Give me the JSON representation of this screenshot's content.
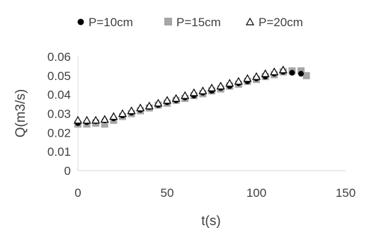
{
  "chart_data": {
    "type": "scatter",
    "xlabel": "t(s)",
    "ylabel": "Q(m3/s)",
    "xlim": [
      0,
      150
    ],
    "ylim": [
      0,
      0.06
    ],
    "x_ticks": [
      "0",
      "50",
      "100",
      "150"
    ],
    "y_ticks": [
      "0",
      "0.01",
      "0.02",
      "0.03",
      "0.04",
      "0.05",
      "0.06"
    ],
    "grid": false,
    "legend_position": "top",
    "series": [
      {
        "name": "P=10cm",
        "marker": "circle",
        "color": "#000000",
        "x": [
          0,
          5,
          10,
          15,
          20,
          25,
          30,
          35,
          40,
          45,
          50,
          55,
          60,
          65,
          70,
          75,
          80,
          85,
          90,
          95,
          100,
          105,
          110,
          115,
          120,
          125
        ],
        "y": [
          0.025,
          0.0255,
          0.026,
          0.0265,
          0.0275,
          0.029,
          0.0305,
          0.032,
          0.0335,
          0.0345,
          0.036,
          0.037,
          0.0385,
          0.0395,
          0.041,
          0.042,
          0.0435,
          0.0445,
          0.046,
          0.047,
          0.0485,
          0.0495,
          0.051,
          0.052,
          0.0515,
          0.051
        ]
      },
      {
        "name": "P=15cm",
        "marker": "square",
        "color": "#a6a6a6",
        "x": [
          0,
          5,
          10,
          15,
          20,
          25,
          30,
          35,
          40,
          45,
          50,
          55,
          60,
          65,
          70,
          75,
          80,
          85,
          90,
          95,
          100,
          105,
          110,
          115,
          120,
          125,
          128
        ],
        "y": [
          0.0245,
          0.0245,
          0.025,
          0.0245,
          0.0265,
          0.0285,
          0.03,
          0.0315,
          0.033,
          0.0345,
          0.0355,
          0.037,
          0.038,
          0.0395,
          0.0405,
          0.042,
          0.043,
          0.0445,
          0.0455,
          0.047,
          0.048,
          0.0495,
          0.0505,
          0.052,
          0.0525,
          0.0525,
          0.05
        ]
      },
      {
        "name": "P=20cm",
        "marker": "triangle",
        "color": "#000000",
        "x": [
          0,
          5,
          10,
          15,
          20,
          25,
          30,
          35,
          40,
          45,
          50,
          55,
          60,
          65,
          70,
          75,
          80,
          85,
          90,
          95,
          100,
          105,
          110,
          115
        ],
        "y": [
          0.0265,
          0.0265,
          0.0265,
          0.027,
          0.0285,
          0.03,
          0.0315,
          0.033,
          0.034,
          0.0355,
          0.037,
          0.038,
          0.0395,
          0.041,
          0.042,
          0.0435,
          0.0445,
          0.046,
          0.047,
          0.0485,
          0.0495,
          0.051,
          0.052,
          0.053
        ]
      }
    ]
  }
}
